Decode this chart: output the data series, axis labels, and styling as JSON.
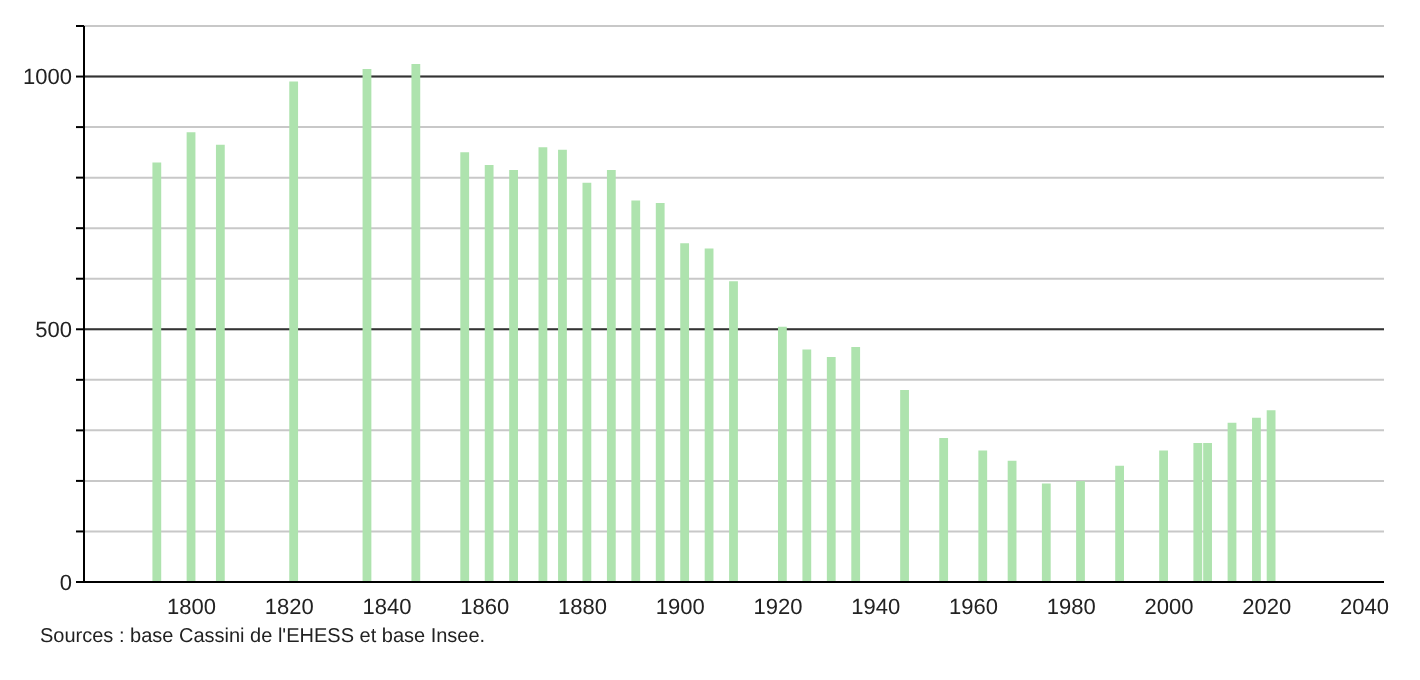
{
  "chart_data": {
    "type": "bar",
    "x": [
      1793,
      1800,
      1806,
      1821,
      1836,
      1846,
      1856,
      1861,
      1866,
      1872,
      1876,
      1881,
      1886,
      1891,
      1896,
      1901,
      1906,
      1911,
      1921,
      1926,
      1931,
      1936,
      1946,
      1954,
      1962,
      1968,
      1975,
      1982,
      1990,
      1999,
      2006,
      2008,
      2013,
      2018,
      2021
    ],
    "values": [
      830,
      890,
      865,
      990,
      1015,
      1025,
      850,
      825,
      815,
      860,
      855,
      790,
      815,
      755,
      750,
      670,
      660,
      595,
      505,
      460,
      445,
      465,
      380,
      285,
      260,
      240,
      195,
      200,
      230,
      260,
      275,
      275,
      315,
      325,
      340
    ],
    "color": "#aee3ae",
    "xlim": [
      1778,
      2044
    ],
    "xticks": [
      1800,
      1820,
      1840,
      1860,
      1880,
      1900,
      1920,
      1940,
      1960,
      1980,
      2000,
      2020,
      2040
    ],
    "ylim": [
      0,
      1100
    ],
    "yticks": [
      0,
      {
        "value": 100,
        "label": null
      },
      {
        "value": 200,
        "label": null
      },
      {
        "value": 300,
        "label": null
      },
      {
        "value": 400,
        "label": null
      },
      500,
      {
        "value": 600,
        "label": null
      },
      {
        "value": 700,
        "label": null
      },
      {
        "value": 800,
        "label": null
      },
      {
        "value": 900,
        "label": null
      },
      1000,
      {
        "value": 1100,
        "label": null
      }
    ],
    "grid": "y",
    "legend": false,
    "annotations": [
      "Sources : base Cassini de l'EHESS et base Insee."
    ]
  }
}
